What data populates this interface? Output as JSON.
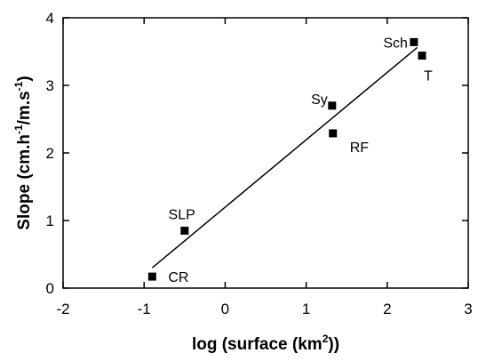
{
  "chart_data": {
    "type": "scatter",
    "xlabel": {
      "prefix": "log (surface (km",
      "sup": "2",
      "suffix": "))"
    },
    "ylabel": {
      "prefix": "Slope (cm.h",
      "sup1": "-1",
      "middle": "/m.s",
      "sup2": "-1",
      "suffix": ")"
    },
    "xlim": [
      -2,
      3
    ],
    "ylim": [
      0,
      4
    ],
    "x_ticks": [
      -2,
      -1,
      0,
      1,
      2,
      3
    ],
    "y_ticks": [
      0,
      1,
      2,
      3,
      4
    ],
    "x_tick_labels": [
      "-2",
      "-1",
      "0",
      "1",
      "2",
      "3"
    ],
    "y_tick_labels": [
      "0",
      "1",
      "2",
      "3",
      "4"
    ],
    "grid": false,
    "points": [
      {
        "label": "CR",
        "x": -0.9,
        "y": 0.17
      },
      {
        "label": "SLP",
        "x": -0.5,
        "y": 0.85
      },
      {
        "label": "Sy",
        "x": 1.32,
        "y": 2.7
      },
      {
        "label": "RF",
        "x": 1.33,
        "y": 2.29
      },
      {
        "label": "Sch",
        "x": 2.33,
        "y": 3.64
      },
      {
        "label": "T",
        "x": 2.43,
        "y": 3.44
      }
    ],
    "fit_line": {
      "x": [
        -0.9,
        2.37
      ],
      "y": [
        0.3,
        3.56
      ]
    },
    "marker_color": "#000000",
    "line_color": "#000000"
  }
}
